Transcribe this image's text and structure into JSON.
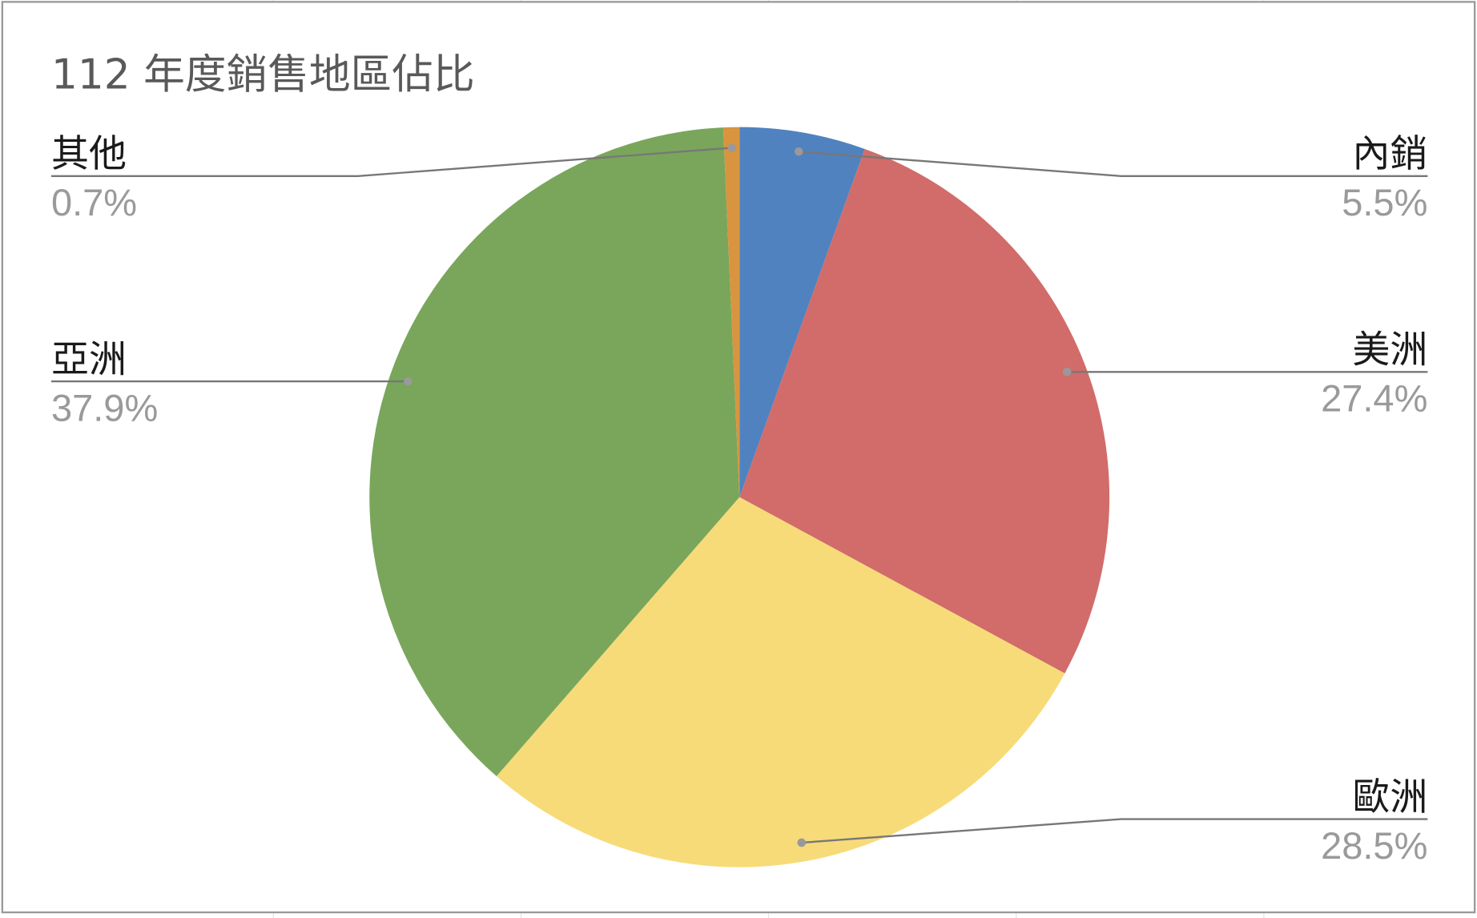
{
  "chart_data": {
    "type": "pie",
    "title": "112 年度銷售地區佔比",
    "start_angle": "top",
    "direction": "clockwise",
    "legend": "none",
    "slices": [
      {
        "label": "內銷",
        "value": 5.5,
        "value_label": "5.5%",
        "color": "#5082bf"
      },
      {
        "label": "美洲",
        "value": 27.4,
        "value_label": "27.4%",
        "color": "#d16c6a"
      },
      {
        "label": "歐洲",
        "value": 28.5,
        "value_label": "28.5%",
        "color": "#f7db79"
      },
      {
        "label": "亞洲",
        "value": 37.9,
        "value_label": "37.9%",
        "color": "#79a65b"
      },
      {
        "label": "其他",
        "value": 0.7,
        "value_label": "0.7%",
        "color": "#d9943f"
      }
    ]
  }
}
